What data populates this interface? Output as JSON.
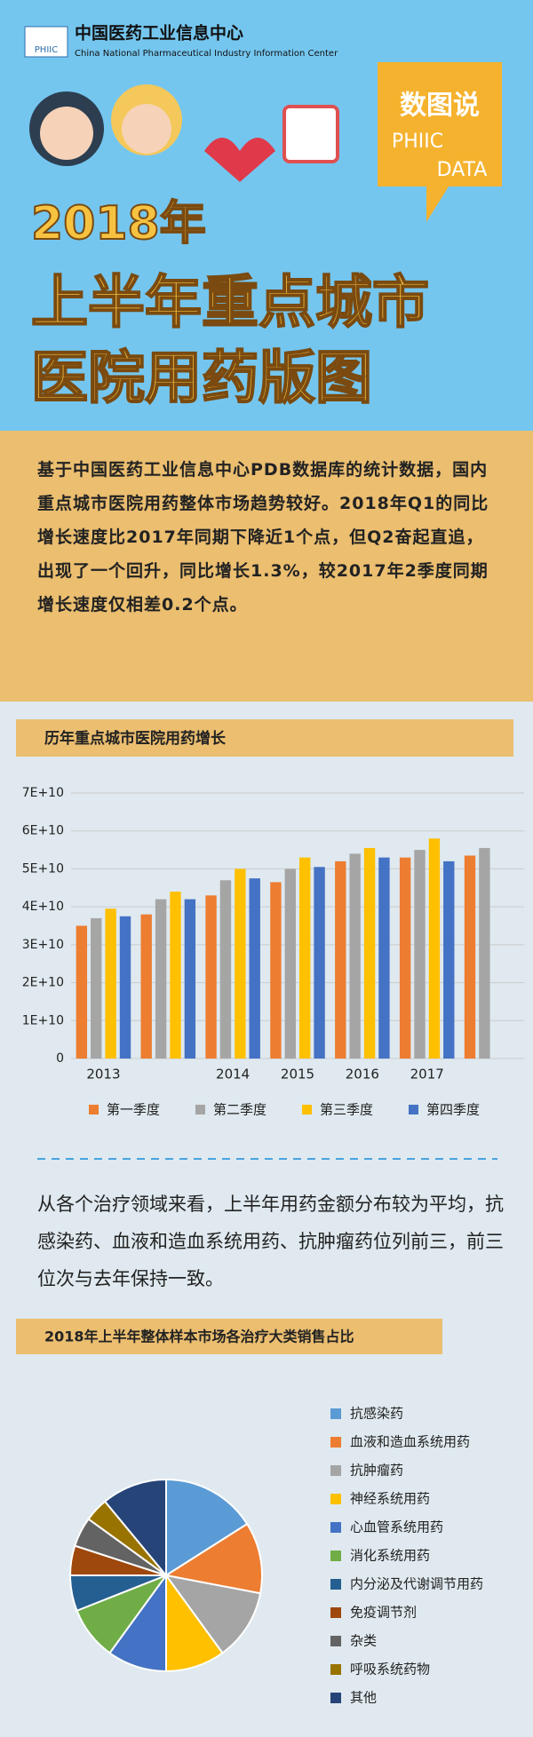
{
  "header": {
    "logo": "PHIIC",
    "org_name": "中国医药工业信息中心",
    "org_name_en": "China National Pharmaceutical Industry Information Center",
    "badge": [
      "数图说",
      "PHIIC",
      "DATA"
    ],
    "title": [
      "2018年",
      "上半年重点城市",
      "医院用药版图"
    ]
  },
  "intro": "基于中国医药工业信息中心PDB数据库的统计数据，国内重点城市医院用药整体市场趋势较好。2018年Q1的同比增长速度比2017年同期下降近1个点，但Q2奋起直追，出现了一个回升，同比增长1.3%，较2017年2季度同期增长速度仅相差0.2个点。",
  "summary": "从各个治疗领域来看，上半年用药金额分布较为平均，抗感染药、血液和造血系统用药、抗肿瘤药位列前三，前三位次与去年保持一致。",
  "chart_data": [
    {
      "type": "bar",
      "title": "历年重点城市医院用药增长",
      "categories": [
        "2013",
        null,
        "2014",
        "2015",
        "2016",
        "2017",
        null
      ],
      "series": [
        {
          "name": "第一季度",
          "color": "#ed7d31",
          "values": [
            35000000000,
            38000000000,
            43000000000,
            46500000000,
            52000000000,
            53000000000,
            53500000000
          ]
        },
        {
          "name": "第二季度",
          "color": "#a5a5a5",
          "values": [
            37000000000,
            42000000000,
            47000000000,
            50000000000,
            54000000000,
            55000000000,
            55500000000
          ]
        },
        {
          "name": "第三季度",
          "color": "#ffc000",
          "values": [
            39500000000,
            44000000000,
            50000000000,
            53000000000,
            55500000000,
            58000000000,
            null
          ]
        },
        {
          "name": "第四季度",
          "color": "#4472c4",
          "values": [
            37500000000,
            42000000000,
            47500000000,
            50500000000,
            53000000000,
            52000000000,
            null
          ]
        }
      ],
      "ylim": [
        0,
        70000000000
      ],
      "yticks": [
        0,
        {
          "value": 10000000000,
          "label": "1E+10"
        },
        {
          "value": 20000000000,
          "label": "2E+10"
        },
        {
          "value": 30000000000,
          "label": "3E+10"
        },
        {
          "value": 40000000000,
          "label": "4E+10"
        },
        {
          "value": 50000000000,
          "label": "5E+10"
        },
        {
          "value": 60000000000,
          "label": "6E+10"
        },
        {
          "value": 70000000000,
          "label": "7E+10"
        }
      ],
      "grid": true
    },
    {
      "type": "pie",
      "title": "2018年上半年整体样本市场各治疗大类销售占比",
      "categories": [
        "抗感染药",
        "血液和造血系统用药",
        "抗肿瘤药",
        "神经系统用药",
        "心血管系统用药",
        "消化系统用药",
        "内分泌及代谢调节用药",
        "免疫调节剂",
        "杂类",
        "呼吸系统药物",
        "其他"
      ],
      "values": [
        16,
        12,
        12,
        10,
        10,
        9,
        6,
        5,
        5,
        4,
        11
      ],
      "colors": [
        "#5b9bd5",
        "#ed7d31",
        "#a5a5a5",
        "#ffc000",
        "#4472c4",
        "#70ad47",
        "#255e91",
        "#9e480e",
        "#636363",
        "#997300",
        "#264478"
      ]
    }
  ]
}
